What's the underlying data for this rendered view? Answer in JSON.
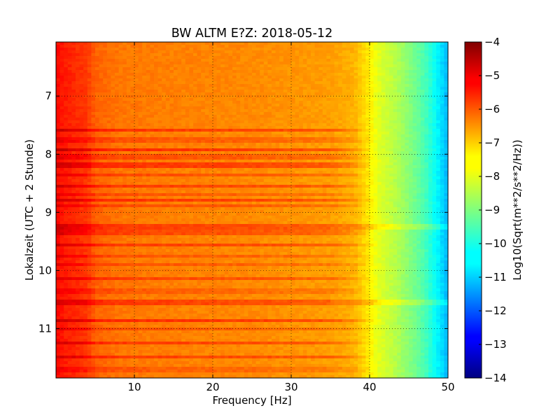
{
  "chart_data": {
    "type": "heatmap",
    "title": "BW ALTM E?Z: 2018-05-12",
    "xlabel": "Frequency [Hz]",
    "ylabel": "Lokalzeit (UTC + 2 Stunde)",
    "xlim": [
      0,
      50
    ],
    "ylim": [
      6.07,
      11.85
    ],
    "y_inverted": true,
    "x_ticks": [
      10,
      20,
      30,
      40,
      50
    ],
    "x_tick_labels": [
      "10",
      "20",
      "30",
      "40",
      "50"
    ],
    "y_ticks": [
      7,
      8,
      9,
      10,
      11
    ],
    "y_tick_labels": [
      "7",
      "8",
      "9",
      "10",
      "11"
    ],
    "grid": true,
    "colormap": "jet",
    "colorbar": {
      "label": "Log10(Sqrt(m**2/s**2/Hz))",
      "range": [
        -14,
        -4
      ],
      "ticks": [
        -4,
        -5,
        -6,
        -7,
        -8,
        -9,
        -10,
        -11,
        -12,
        -13,
        -14
      ],
      "tick_labels": [
        "−4",
        "−5",
        "−6",
        "−7",
        "−8",
        "−9",
        "−10",
        "−11",
        "−12",
        "−13",
        "−14"
      ]
    },
    "spectrum_profile": {
      "frequency_hz": [
        0,
        0.5,
        1,
        2,
        4,
        5,
        8,
        15,
        25,
        35,
        38,
        40,
        41,
        43,
        45,
        47,
        49,
        50
      ],
      "level_log10": [
        -5.3,
        -5.4,
        -5.5,
        -5.6,
        -5.8,
        -6.2,
        -6.4,
        -6.5,
        -6.6,
        -6.8,
        -7.0,
        -7.6,
        -8.0,
        -8.4,
        -8.9,
        -9.5,
        -10.5,
        -11.0
      ]
    },
    "bands": [
      {
        "time": 7.6,
        "strength": 0.9,
        "max_freq_hz": 42
      },
      {
        "time": 7.75,
        "strength": 0.5,
        "max_freq_hz": 40
      },
      {
        "time": 7.92,
        "strength": 1.0,
        "max_freq_hz": 40
      },
      {
        "time": 8.05,
        "strength": 0.6,
        "max_freq_hz": 40
      },
      {
        "time": 8.2,
        "strength": 0.9,
        "max_freq_hz": 40
      },
      {
        "time": 8.35,
        "strength": 0.6,
        "max_freq_hz": 40
      },
      {
        "time": 8.55,
        "strength": 0.8,
        "max_freq_hz": 40
      },
      {
        "time": 8.7,
        "strength": 0.5,
        "max_freq_hz": 40
      },
      {
        "time": 8.8,
        "strength": 0.9,
        "max_freq_hz": 42
      },
      {
        "time": 8.9,
        "strength": 0.6,
        "max_freq_hz": 40
      },
      {
        "time": 9.25,
        "strength": 0.8,
        "max_freq_hz": 50
      },
      {
        "time": 9.35,
        "strength": 0.7,
        "max_freq_hz": 40
      },
      {
        "time": 9.55,
        "strength": 0.8,
        "max_freq_hz": 42
      },
      {
        "time": 9.75,
        "strength": 0.5,
        "max_freq_hz": 40
      },
      {
        "time": 9.9,
        "strength": 0.5,
        "max_freq_hz": 40
      },
      {
        "time": 10.15,
        "strength": 0.7,
        "max_freq_hz": 40
      },
      {
        "time": 10.35,
        "strength": 0.4,
        "max_freq_hz": 40
      },
      {
        "time": 10.55,
        "strength": 0.8,
        "max_freq_hz": 50
      },
      {
        "time": 10.85,
        "strength": 1.0,
        "max_freq_hz": 42
      },
      {
        "time": 11.0,
        "strength": 0.5,
        "max_freq_hz": 40
      },
      {
        "time": 11.25,
        "strength": 0.8,
        "max_freq_hz": 42
      },
      {
        "time": 11.5,
        "strength": 0.8,
        "max_freq_hz": 40
      },
      {
        "time": 11.7,
        "strength": 0.4,
        "max_freq_hz": 40
      }
    ]
  }
}
